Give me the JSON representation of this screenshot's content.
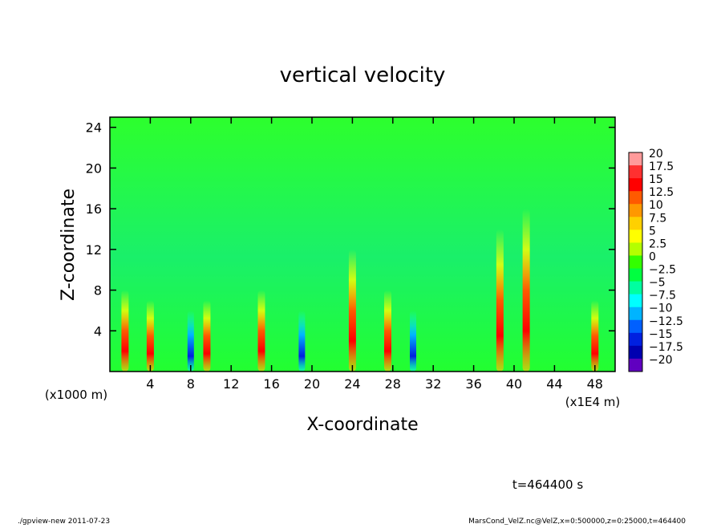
{
  "chart_data": {
    "type": "heatmap",
    "title": "vertical velocity",
    "xlabel": "X-coordinate",
    "ylabel": "Z-coordinate",
    "x_unit_left": "(x1000 m)",
    "x_unit_right": "(x1E4 m)",
    "xlim": [
      0,
      50
    ],
    "ylim": [
      0,
      25
    ],
    "xticks": [
      4,
      8,
      12,
      16,
      20,
      24,
      28,
      32,
      36,
      40,
      44,
      48
    ],
    "yticks": [
      4,
      8,
      12,
      16,
      20,
      24
    ],
    "colorbar": {
      "levels": [
        "20",
        "17.5",
        "15",
        "12.5",
        "10",
        "7.5",
        "5",
        "2.5",
        "0",
        "−2.5",
        "−5",
        "−7.5",
        "−10",
        "−12.5",
        "−15",
        "−17.5",
        "−20"
      ],
      "colors": [
        "#ff9a9a",
        "#ff3030",
        "#ff0000",
        "#ff5a00",
        "#ff9800",
        "#ffd000",
        "#ffff00",
        "#b4ff00",
        "#33ff00",
        "#00ff40",
        "#00ffa0",
        "#00ffff",
        "#00b4ff",
        "#0060ff",
        "#0020e0",
        "#0000b0",
        "#6000c0"
      ]
    },
    "background_level": "0",
    "features": [
      {
        "x": 1.5,
        "z_top": 8,
        "sign": "positive"
      },
      {
        "x": 4.0,
        "z_top": 7,
        "sign": "positive"
      },
      {
        "x": 8.0,
        "z_top": 6,
        "sign": "negative"
      },
      {
        "x": 9.6,
        "z_top": 7,
        "sign": "positive"
      },
      {
        "x": 15.0,
        "z_top": 8,
        "sign": "positive"
      },
      {
        "x": 19.0,
        "z_top": 6,
        "sign": "negative"
      },
      {
        "x": 24.0,
        "z_top": 12,
        "sign": "positive"
      },
      {
        "x": 27.5,
        "z_top": 8,
        "sign": "positive"
      },
      {
        "x": 30.0,
        "z_top": 6,
        "sign": "negative"
      },
      {
        "x": 38.6,
        "z_top": 14,
        "sign": "positive"
      },
      {
        "x": 41.2,
        "z_top": 16,
        "sign": "positive"
      },
      {
        "x": 48.0,
        "z_top": 7,
        "sign": "positive"
      }
    ]
  },
  "annotations": {
    "time": "t=464400 s",
    "footer_left": "./gpview-new  2011-07-23",
    "footer_right": "MarsCond_VelZ.nc@VelZ,x=0:500000,z=0:25000,t=464400"
  }
}
